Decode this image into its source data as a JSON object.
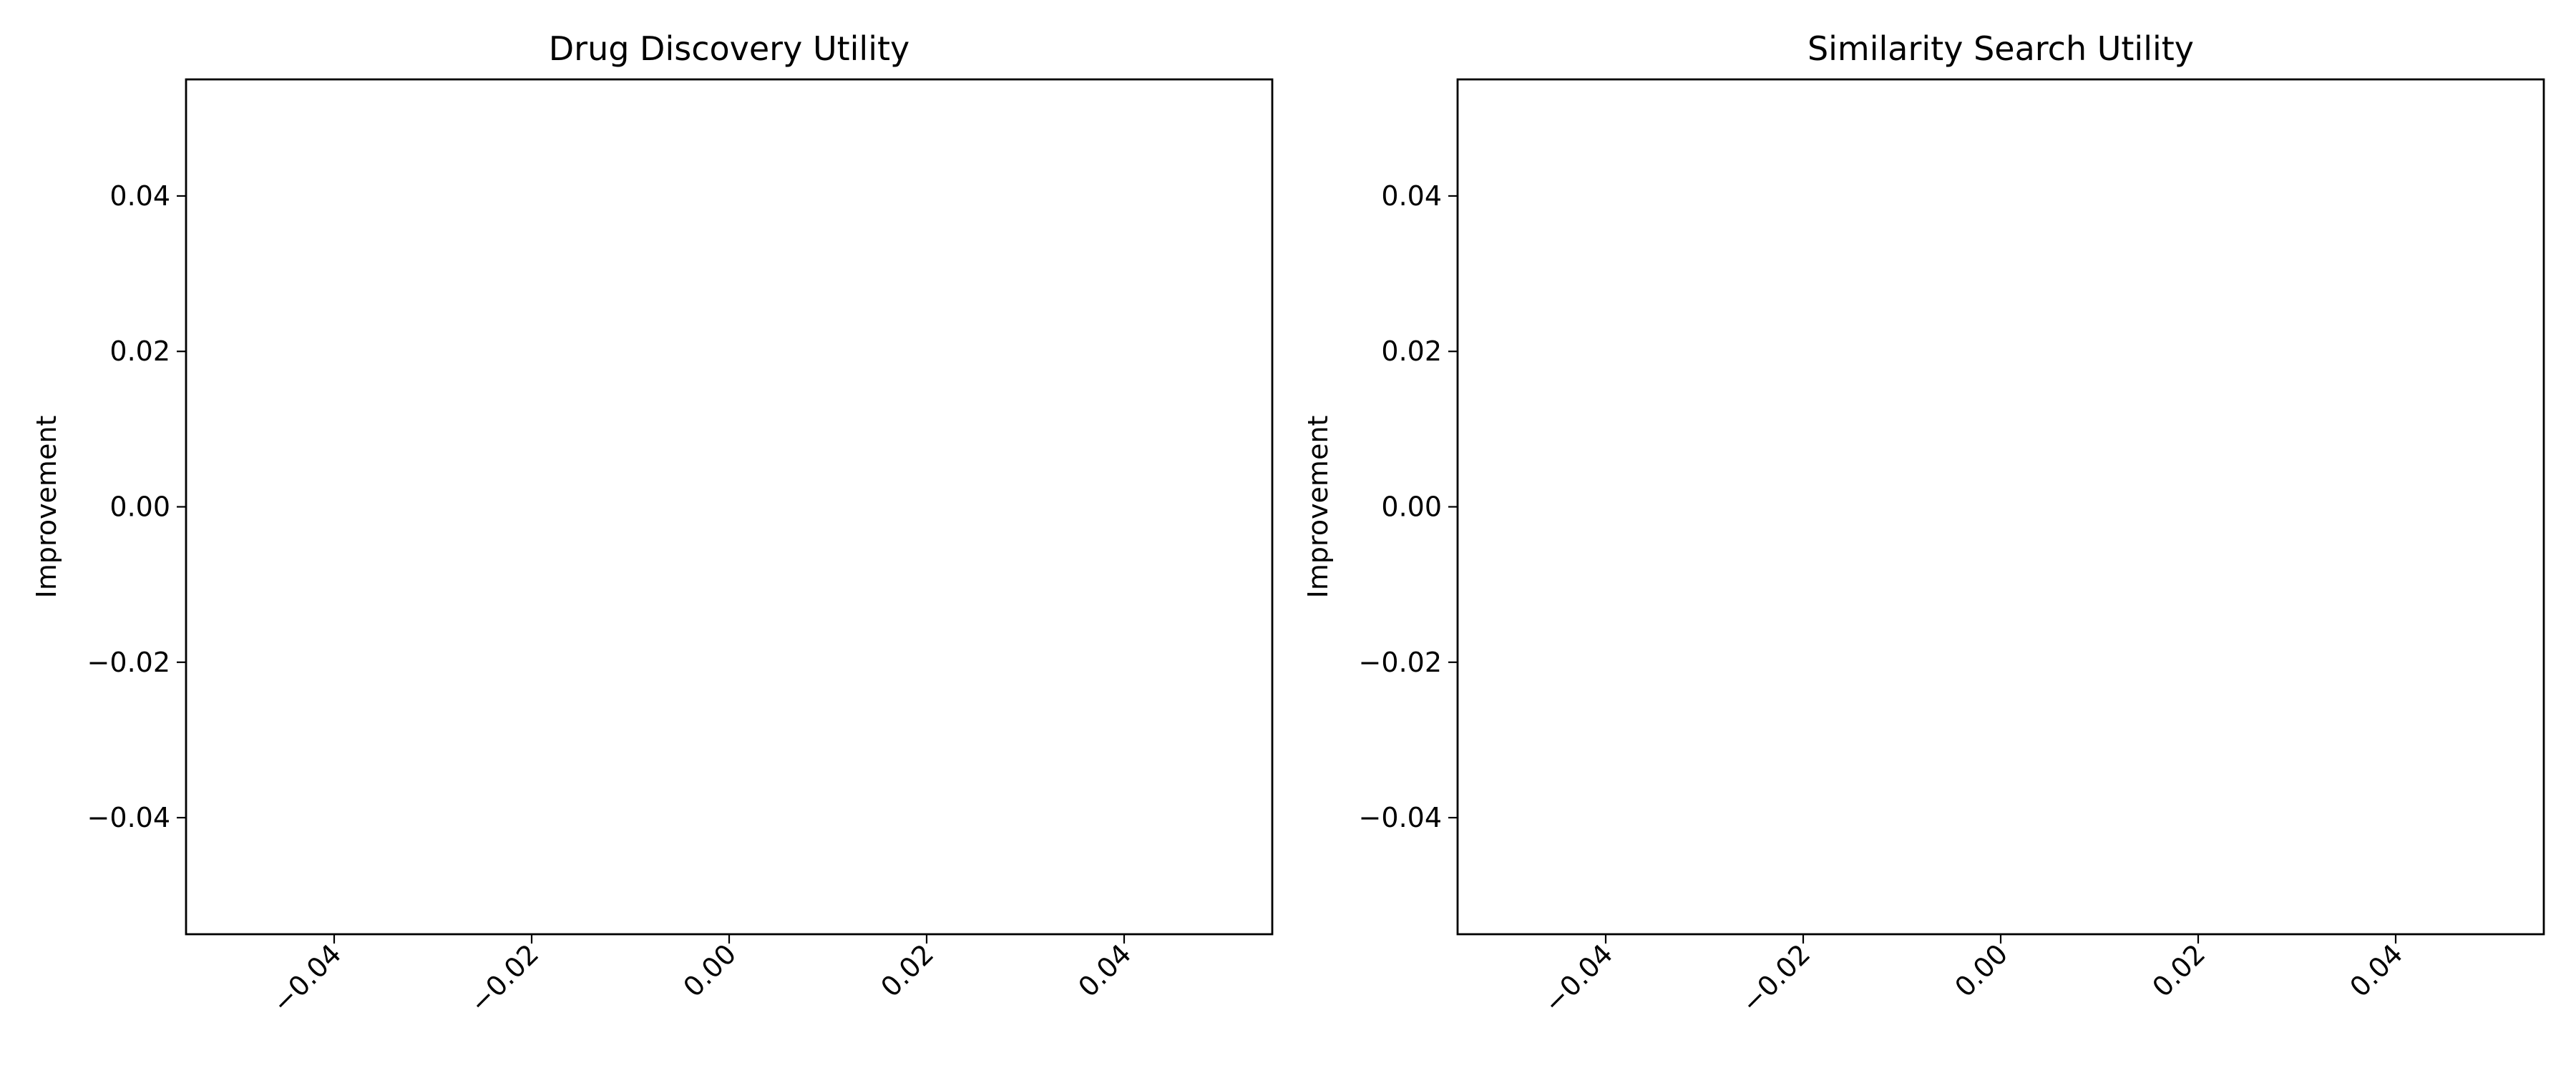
{
  "chart_data": [
    {
      "type": "bar",
      "title": "Drug Discovery Utility",
      "xlabel": "",
      "ylabel": "Improvement",
      "categories": [],
      "values": [],
      "xlim": [
        -0.055,
        0.055
      ],
      "ylim": [
        -0.055,
        0.055
      ],
      "xticks": [
        -0.04,
        -0.02,
        0.0,
        0.02,
        0.04
      ],
      "xtick_labels": [
        "−0.04",
        "−0.02",
        "0.00",
        "0.02",
        "0.04"
      ],
      "xtick_rotation": 45,
      "yticks": [
        0.04,
        0.02,
        0.0,
        -0.02,
        -0.04
      ],
      "ytick_labels": [
        "0.04",
        "0.02",
        "0.00",
        "−0.02",
        "−0.04"
      ],
      "grid": false
    },
    {
      "type": "bar",
      "title": "Similarity Search Utility",
      "xlabel": "",
      "ylabel": "Improvement",
      "categories": [],
      "values": [],
      "xlim": [
        -0.055,
        0.055
      ],
      "ylim": [
        -0.055,
        0.055
      ],
      "xticks": [
        -0.04,
        -0.02,
        0.0,
        0.02,
        0.04
      ],
      "xtick_labels": [
        "−0.04",
        "−0.02",
        "0.00",
        "0.02",
        "0.04"
      ],
      "xtick_rotation": 45,
      "yticks": [
        0.04,
        0.02,
        0.0,
        -0.02,
        -0.04
      ],
      "ytick_labels": [
        "0.04",
        "0.02",
        "0.00",
        "−0.02",
        "−0.04"
      ],
      "grid": false
    }
  ]
}
